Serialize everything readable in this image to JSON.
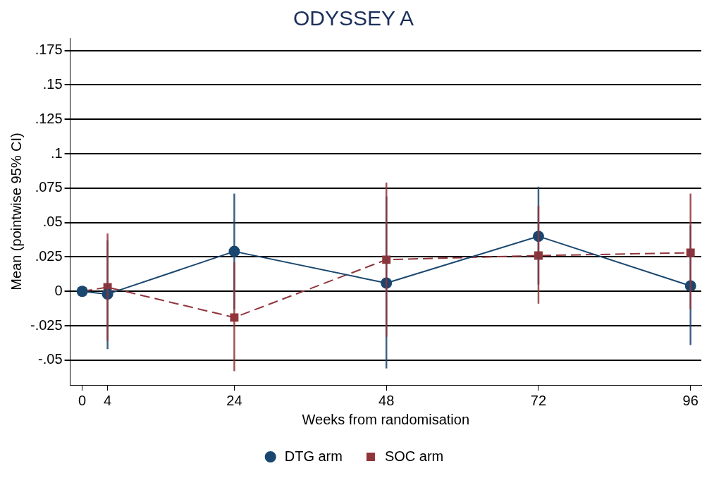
{
  "chart_data": {
    "type": "line",
    "title": "ODYSSEY A",
    "xlabel": "Weeks from randomisation",
    "ylabel": "Mean (pointwise 95% CI)",
    "x": [
      0,
      4,
      24,
      48,
      72,
      96
    ],
    "xlim": [
      -1.9,
      97.7
    ],
    "xticks": [
      0,
      4,
      24,
      48,
      72,
      96
    ],
    "ylim": [
      -0.068,
      0.184
    ],
    "yticks": [
      {
        "value": -0.05,
        "label": "-.05"
      },
      {
        "value": -0.025,
        "label": "-.025"
      },
      0,
      {
        "value": 0.025,
        "label": ".025"
      },
      {
        "value": 0.05,
        "label": ".05"
      },
      {
        "value": 0.075,
        "label": ".075"
      },
      {
        "value": 0.1,
        "label": ".1"
      },
      {
        "value": 0.125,
        "label": ".125"
      },
      {
        "value": 0.15,
        "label": ".15"
      },
      {
        "value": 0.175,
        "label": ".175"
      }
    ],
    "grid": "y",
    "legend": "bottom",
    "series": [
      {
        "name": "DTG arm",
        "color": "#1a476f",
        "marker": "circle",
        "line_style": "solid",
        "values": [
          0,
          -0.002,
          0.029,
          0.006,
          0.04,
          0.004
        ],
        "errors": [
          null,
          [
            -0.042,
            0.037
          ],
          [
            -0.013,
            0.071
          ],
          [
            -0.056,
            0.069
          ],
          [
            0.005,
            0.076
          ],
          [
            -0.039,
            0.048
          ]
        ]
      },
      {
        "name": "SOC arm",
        "color": "#90353b",
        "marker": "square",
        "line_style": "dashed",
        "values": [
          0,
          0.003,
          -0.019,
          0.023,
          0.026,
          0.028
        ],
        "errors": [
          null,
          [
            -0.036,
            0.042
          ],
          [
            -0.058,
            0.021
          ],
          [
            -0.033,
            0.079
          ],
          [
            -0.009,
            0.062
          ],
          [
            -0.013,
            0.071
          ]
        ]
      }
    ]
  }
}
